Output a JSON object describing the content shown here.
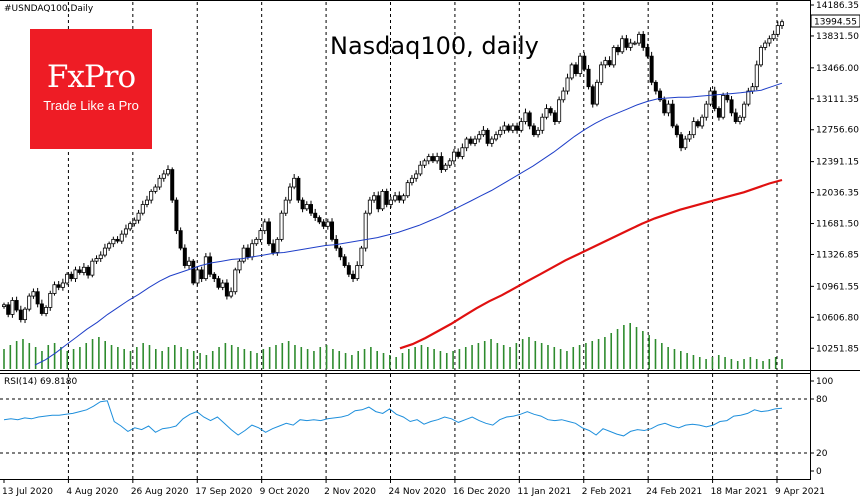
{
  "symbol_label": "#USNDAQ100,Daily",
  "brand": {
    "name": "FxPro",
    "tagline": "Trade Like a Pro",
    "color": "#ee1c25"
  },
  "chart_title": "Nasdaq100, daily",
  "rsi_label": "RSI(14) 69.8180",
  "current_price_label": "13994.55",
  "colors": {
    "ma50": "#1f3fc8",
    "ma200": "#e01010",
    "volume": "#2e8b2e",
    "rsi": "#1e8fdc",
    "candle": "#000000"
  },
  "chart_data": [
    {
      "type": "candlestick",
      "title": "Nasdaq100, daily",
      "ylim": [
        10060,
        14186.35
      ],
      "y_ticks": [
        "14186.35",
        "13831.50",
        "13466.00",
        "13111.35",
        "12756.60",
        "12391.15",
        "12036.35",
        "11681.50",
        "11326.85",
        "10961.55",
        "10606.80",
        "10251.85"
      ],
      "x_ticks": [
        "13 Jul 2020",
        "4 Aug 2020",
        "26 Aug 2020",
        "17 Sep 2020",
        "9 Oct 2020",
        "2 Nov 2020",
        "24 Nov 2020",
        "16 Dec 2020",
        "11 Jan 2021",
        "2 Feb 2021",
        "24 Feb 2021",
        "18 Mar 2021",
        "9 Apr 2021"
      ],
      "close": [
        10750,
        10640,
        10800,
        10690,
        10580,
        10700,
        10850,
        10900,
        10760,
        10650,
        10720,
        10880,
        10980,
        10950,
        11000,
        11100,
        11050,
        11150,
        11120,
        11180,
        11090,
        11250,
        11280,
        11320,
        11400,
        11450,
        11500,
        11480,
        11560,
        11620,
        11680,
        11720,
        11800,
        11900,
        11950,
        12050,
        12100,
        12200,
        12250,
        12300,
        11950,
        11600,
        11400,
        11200,
        11250,
        11000,
        11150,
        11050,
        11300,
        11100,
        11050,
        10950,
        11000,
        10850,
        10900,
        11150,
        11250,
        11400,
        11300,
        11450,
        11500,
        11600,
        11700,
        11450,
        11350,
        11500,
        11800,
        11950,
        12100,
        12200,
        11950,
        11850,
        11900,
        11800,
        11750,
        11700,
        11650,
        11700,
        11500,
        11400,
        11300,
        11200,
        11100,
        11050,
        11200,
        11400,
        11800,
        11950,
        12000,
        11850,
        12050,
        11900,
        11950,
        12000,
        11950,
        12000,
        12150,
        12200,
        12250,
        12350,
        12400,
        12450,
        12400,
        12450,
        12300,
        12350,
        12400,
        12500,
        12450,
        12550,
        12650,
        12600,
        12650,
        12700,
        12750,
        12600,
        12650,
        12700,
        12750,
        12800,
        12750,
        12800,
        12750,
        12850,
        12950,
        12800,
        12700,
        12750,
        12900,
        13000,
        12950,
        12850,
        13100,
        13200,
        13350,
        13500,
        13400,
        13600,
        13450,
        13250,
        13050,
        13300,
        13500,
        13550,
        13500,
        13700,
        13650,
        13800,
        13700,
        13750,
        13750,
        13850,
        13700,
        13600,
        13300,
        13200,
        13100,
        12950,
        13050,
        12800,
        12700,
        12550,
        12650,
        12700,
        12850,
        12800,
        12900,
        13050,
        13200,
        13000,
        12900,
        13150,
        13100,
        12950,
        12850,
        12900,
        13050,
        13200,
        13250,
        13500,
        13700,
        13750,
        13800,
        13850,
        13950,
        13994.55
      ],
      "series": [
        {
          "name": "MA(50)",
          "color": "#1f3fc8",
          "values": [
            10060,
            10120,
            10200,
            10290,
            10380,
            10470,
            10550,
            10640,
            10720,
            10800,
            10870,
            10950,
            11020,
            11080,
            11120,
            11160,
            11200,
            11230,
            11250,
            11270,
            11280,
            11300,
            11320,
            11340,
            11350,
            11370,
            11390,
            11410,
            11430,
            11440,
            11460,
            11480,
            11500,
            11520,
            11550,
            11580,
            11620,
            11660,
            11710,
            11760,
            11820,
            11880,
            11940,
            12000,
            12060,
            12130,
            12200,
            12270,
            12340,
            12420,
            12500,
            12590,
            12680,
            12760,
            12830,
            12890,
            12940,
            12990,
            13040,
            13080,
            13110,
            13120,
            13130,
            13130,
            13140,
            13150,
            13160,
            13170,
            13180,
            13195,
            13210,
            13250,
            13290
          ]
        },
        {
          "name": "MA(200)",
          "color": "#e01010",
          "values": [
            10251,
            10300,
            10370,
            10450,
            10530,
            10620,
            10710,
            10790,
            10860,
            10940,
            11020,
            11100,
            11180,
            11260,
            11330,
            11400,
            11470,
            11540,
            11610,
            11680,
            11740,
            11790,
            11840,
            11880,
            11920,
            11960,
            12000,
            12040,
            12090,
            12140,
            12180
          ]
        }
      ]
    },
    {
      "type": "line",
      "title": "RSI(14) 69.8180",
      "ylim": [
        0,
        100
      ],
      "y_ticks": [
        "100",
        "80",
        "20",
        "0"
      ],
      "series": [
        {
          "name": "RSI(14)",
          "values": [
            57,
            58,
            57,
            59,
            58,
            60,
            61,
            62,
            62,
            63,
            64,
            66,
            68,
            72,
            77,
            78,
            55,
            50,
            44,
            48,
            46,
            50,
            43,
            47,
            48,
            50,
            58,
            63,
            66,
            60,
            56,
            60,
            53,
            46,
            40,
            45,
            51,
            48,
            43,
            47,
            50,
            53,
            51,
            57,
            56,
            57,
            56,
            58,
            59,
            60,
            62,
            67,
            68,
            71,
            66,
            64,
            69,
            63,
            60,
            55,
            57,
            52,
            55,
            57,
            60,
            58,
            54,
            57,
            60,
            56,
            53,
            51,
            57,
            60,
            61,
            63,
            66,
            63,
            61,
            57,
            56,
            57,
            55,
            53,
            48,
            45,
            40,
            47,
            44,
            41,
            39,
            44,
            46,
            45,
            47,
            51,
            53,
            50,
            48,
            51,
            52,
            51,
            49,
            51,
            55,
            56,
            61,
            62,
            64,
            68,
            66,
            67,
            69,
            69.818
          ]
        }
      ]
    },
    {
      "type": "bar",
      "title": "",
      "values": [
        20,
        24,
        28,
        30,
        26,
        22,
        18,
        24,
        26,
        22,
        18,
        20,
        22,
        26,
        30,
        32,
        28,
        24,
        22,
        20,
        18,
        22,
        26,
        24,
        20,
        18,
        22,
        24,
        22,
        20,
        18,
        16,
        14,
        18,
        22,
        26,
        24,
        22,
        20,
        18,
        16,
        20,
        22,
        24,
        26,
        28,
        24,
        22,
        20,
        18,
        22,
        24,
        20,
        18,
        16,
        14,
        18,
        20,
        22,
        18,
        16,
        14,
        12,
        16,
        20,
        22,
        24,
        22,
        20,
        18,
        16,
        18,
        20,
        22,
        24,
        26,
        28,
        30,
        26,
        24,
        22,
        26,
        30,
        32,
        28,
        26,
        24,
        22,
        20,
        18,
        22,
        24,
        26,
        28,
        30,
        32,
        36,
        40,
        44,
        46,
        42,
        38,
        34,
        30,
        26,
        22,
        20,
        18,
        16,
        14,
        12,
        10,
        12,
        14,
        12,
        10,
        8,
        10,
        12,
        10,
        8,
        10,
        12,
        10
      ]
    }
  ]
}
